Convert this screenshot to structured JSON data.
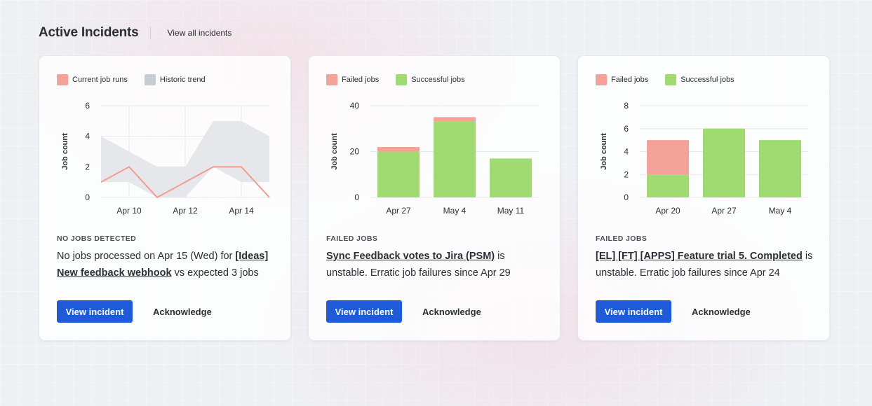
{
  "header": {
    "title": "Active Incidents",
    "view_all": "View all incidents"
  },
  "cards": [
    {
      "legend": [
        "Current job runs",
        "Historic trend"
      ],
      "kind": "NO JOBS DETECTED",
      "desc_pre": "No jobs processed on Apr 15 (Wed) for ",
      "desc_link": "[Ideas] New feedback webhook",
      "desc_post": " vs expected 3 jobs",
      "primary_label": "View incident",
      "ack_label": "Acknowledge"
    },
    {
      "legend": [
        "Failed jobs",
        "Successful jobs"
      ],
      "kind": "FAILED JOBS",
      "desc_pre": "",
      "desc_link": "Sync Feedback votes to Jira (PSM)",
      "desc_post": " is unstable. Erratic job failures since Apr 29",
      "primary_label": "View incident",
      "ack_label": "Acknowledge"
    },
    {
      "legend": [
        "Failed jobs",
        "Successful jobs"
      ],
      "kind": "FAILED JOBS",
      "desc_pre": "",
      "desc_link": "[EL] [FT] [APPS] Feature trial 5. Completed",
      "desc_post": " is unstable. Erratic job failures since Apr 24",
      "primary_label": "View incident",
      "ack_label": "Acknowledge"
    }
  ],
  "colors": {
    "failed": "#f4a19a",
    "success": "#9fdb70",
    "current_line": "#f19d93",
    "historic_band": "#e3e4e8",
    "historic_swatch": "#c8ccd3",
    "primary": "#1f5bd8"
  },
  "chart_data": [
    {
      "type": "line",
      "ylabel": "Job count",
      "ylim": [
        0,
        6
      ],
      "yticks": [
        "0",
        "2",
        "4",
        "6"
      ],
      "x_tick_labels": [
        "Apr 10",
        "Apr 12",
        "Apr 14"
      ],
      "grid": true,
      "legend_position": "top-left",
      "series": [
        {
          "name": "Current job runs",
          "x": [
            0,
            1,
            2,
            3,
            4,
            5,
            6
          ],
          "values": [
            1,
            2,
            0,
            1,
            2,
            2,
            0
          ]
        },
        {
          "name": "Historic trend",
          "x": [
            0,
            1,
            2,
            3,
            4,
            5,
            6
          ],
          "lower": [
            1,
            1,
            0,
            0,
            2,
            1,
            1
          ],
          "upper": [
            4,
            3,
            2,
            2,
            5,
            5,
            4
          ]
        }
      ]
    },
    {
      "type": "bar",
      "ylabel": "Job count",
      "ylim": [
        0,
        40
      ],
      "yticks": [
        "0",
        "20",
        "40"
      ],
      "categories": [
        "Apr 27",
        "May 4",
        "May 11"
      ],
      "grid": true,
      "legend_position": "top-left",
      "series": [
        {
          "name": "Successful jobs",
          "values": [
            20,
            33,
            17
          ]
        },
        {
          "name": "Failed jobs",
          "values": [
            2,
            2,
            0
          ]
        }
      ]
    },
    {
      "type": "bar",
      "ylabel": "Job count",
      "ylim": [
        0,
        8
      ],
      "yticks": [
        "0",
        "2",
        "4",
        "6",
        "8"
      ],
      "categories": [
        "Apr 20",
        "Apr 27",
        "May 4"
      ],
      "grid": true,
      "legend_position": "top-left",
      "series": [
        {
          "name": "Successful jobs",
          "values": [
            2,
            6,
            5
          ]
        },
        {
          "name": "Failed jobs",
          "values": [
            3,
            0,
            0
          ]
        }
      ]
    }
  ]
}
